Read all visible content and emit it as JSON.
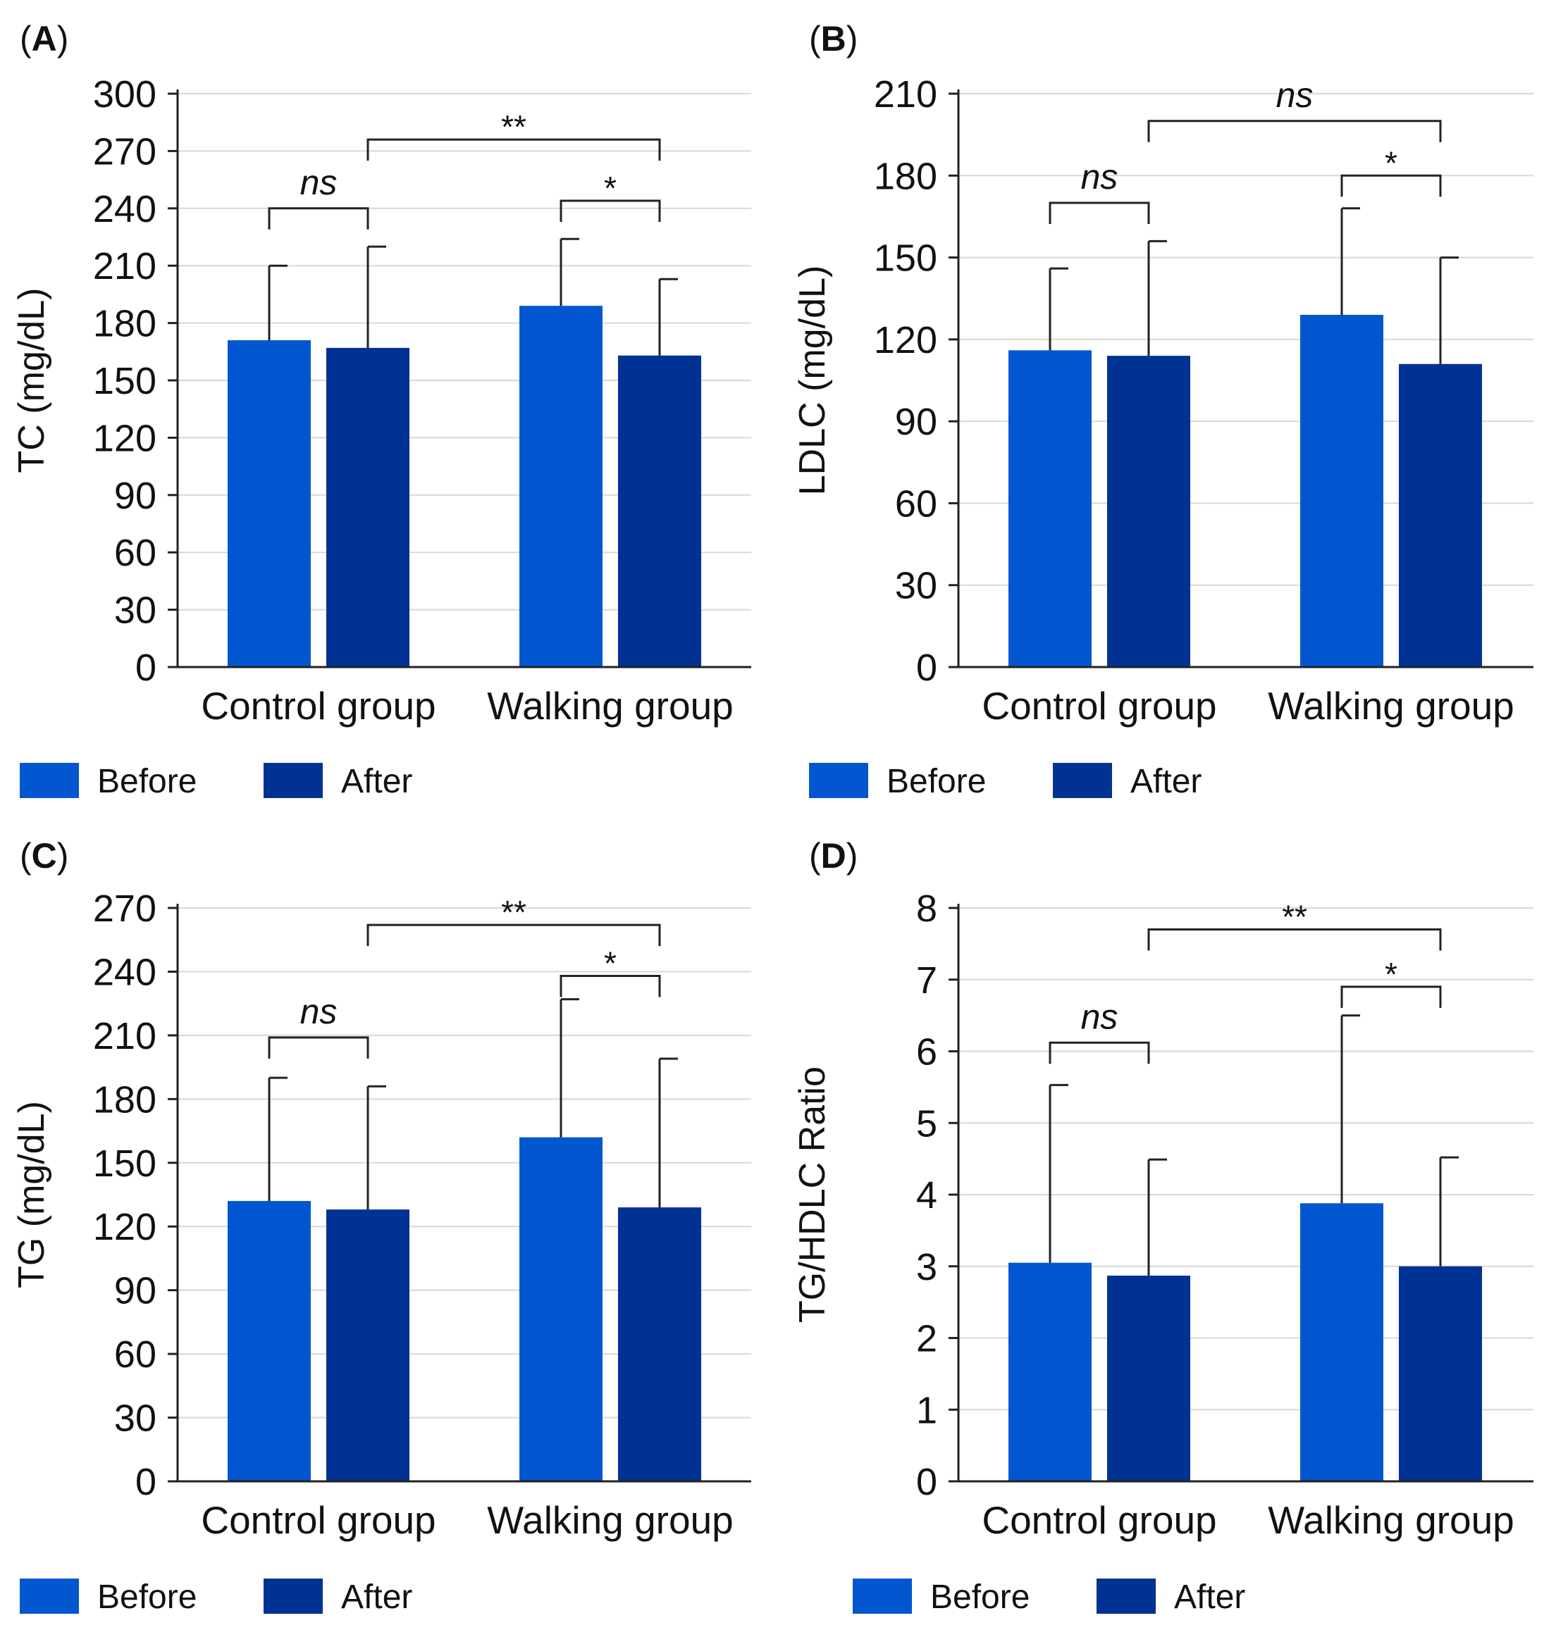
{
  "colors": {
    "before": "#0257d0",
    "after": "#003294",
    "grid": "#d8d8d8",
    "axis": "#222222",
    "errorbar": "#222222"
  },
  "legend": {
    "before": "Before",
    "after": "After"
  },
  "chart_data": [
    {
      "type": "bar",
      "panel": "A",
      "ylabel": "TC (mg/dL)",
      "ylim": [
        0,
        300
      ],
      "yticks": [
        0,
        30,
        60,
        90,
        120,
        150,
        180,
        210,
        240,
        270,
        300
      ],
      "categories": [
        "Control group",
        "Walking group"
      ],
      "series": [
        {
          "name": "Before",
          "values": [
            171,
            189
          ],
          "error": [
            39,
            35
          ]
        },
        {
          "name": "After",
          "values": [
            167,
            163
          ],
          "error": [
            53,
            40
          ]
        }
      ],
      "comparisons": [
        {
          "label": "ns",
          "from": [
            0,
            0
          ],
          "to": [
            0,
            1
          ],
          "level": 240,
          "italic": true
        },
        {
          "label": "*",
          "from": [
            1,
            0
          ],
          "to": [
            1,
            1
          ],
          "level": 244,
          "italic": false
        },
        {
          "label": "**",
          "from": [
            0,
            1
          ],
          "to": [
            1,
            1
          ],
          "level": 276,
          "italic": false
        }
      ]
    },
    {
      "type": "bar",
      "panel": "B",
      "ylabel": "LDLC (mg/dL)",
      "ylim": [
        0,
        210
      ],
      "yticks": [
        0,
        30,
        60,
        90,
        120,
        150,
        180,
        210
      ],
      "categories": [
        "Control group",
        "Walking group"
      ],
      "series": [
        {
          "name": "Before",
          "values": [
            116,
            129
          ],
          "error": [
            30,
            39
          ]
        },
        {
          "name": "After",
          "values": [
            114,
            111
          ],
          "error": [
            42,
            39
          ]
        }
      ],
      "comparisons": [
        {
          "label": "ns",
          "from": [
            0,
            0
          ],
          "to": [
            0,
            1
          ],
          "level": 170,
          "italic": true
        },
        {
          "label": "*",
          "from": [
            1,
            0
          ],
          "to": [
            1,
            1
          ],
          "level": 180,
          "italic": false
        },
        {
          "label": "ns",
          "from": [
            0,
            1
          ],
          "to": [
            1,
            1
          ],
          "level": 200,
          "italic": true
        }
      ]
    },
    {
      "type": "bar",
      "panel": "C",
      "ylabel": "TG (mg/dL)",
      "ylim": [
        0,
        270
      ],
      "yticks": [
        0,
        30,
        60,
        90,
        120,
        150,
        180,
        210,
        240,
        270
      ],
      "categories": [
        "Control group",
        "Walking group"
      ],
      "series": [
        {
          "name": "Before",
          "values": [
            132,
            162
          ],
          "error": [
            58,
            65
          ]
        },
        {
          "name": "After",
          "values": [
            128,
            129
          ],
          "error": [
            58,
            70
          ]
        }
      ],
      "comparisons": [
        {
          "label": "ns",
          "from": [
            0,
            0
          ],
          "to": [
            0,
            1
          ],
          "level": 209,
          "italic": true
        },
        {
          "label": "*",
          "from": [
            1,
            0
          ],
          "to": [
            1,
            1
          ],
          "level": 238,
          "italic": false
        },
        {
          "label": "**",
          "from": [
            0,
            1
          ],
          "to": [
            1,
            1
          ],
          "level": 262,
          "italic": false
        }
      ]
    },
    {
      "type": "bar",
      "panel": "D",
      "ylabel": "TG/HDLC Ratio",
      "ylim": [
        0,
        8
      ],
      "yticks": [
        0,
        1,
        2,
        3,
        4,
        5,
        6,
        7,
        8
      ],
      "categories": [
        "Control group",
        "Walking group"
      ],
      "series": [
        {
          "name": "Before",
          "values": [
            3.05,
            3.88
          ],
          "error": [
            2.48,
            2.62
          ]
        },
        {
          "name": "After",
          "values": [
            2.87,
            3.0
          ],
          "error": [
            1.62,
            1.52
          ]
        }
      ],
      "comparisons": [
        {
          "label": "ns",
          "from": [
            0,
            0
          ],
          "to": [
            0,
            1
          ],
          "level": 6.12,
          "italic": true
        },
        {
          "label": "*",
          "from": [
            1,
            0
          ],
          "to": [
            1,
            1
          ],
          "level": 6.9,
          "italic": false
        },
        {
          "label": "**",
          "from": [
            0,
            1
          ],
          "to": [
            1,
            1
          ],
          "level": 7.7,
          "italic": false
        }
      ]
    }
  ]
}
